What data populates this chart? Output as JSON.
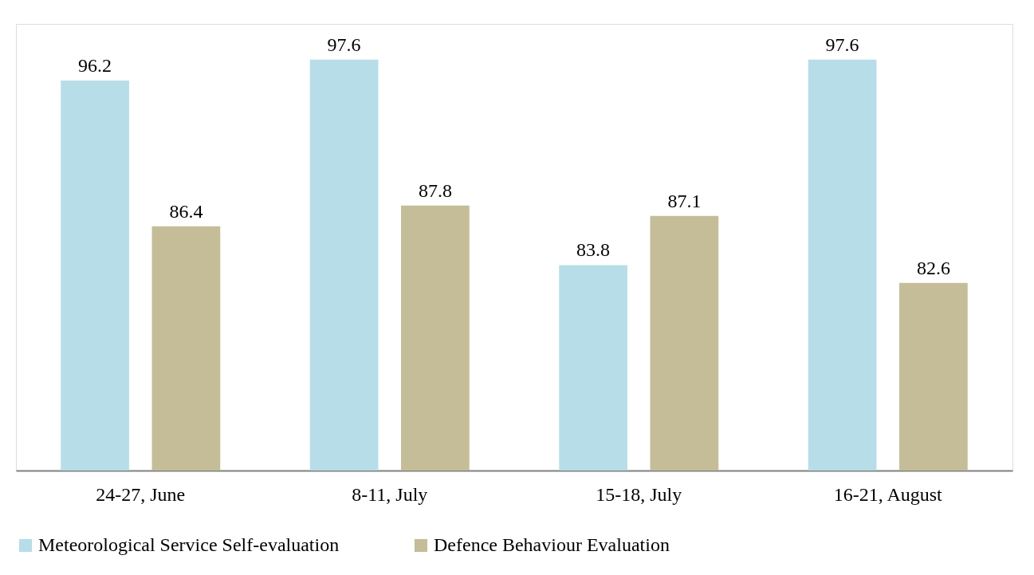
{
  "chart_data": {
    "type": "bar",
    "categories": [
      "24-27, June",
      "8-11, July",
      "15-18, July",
      "16-21, August"
    ],
    "series": [
      {
        "name": "Meteorological Service Self-evaluation",
        "color": "#b7dde8",
        "values": [
          96.2,
          97.6,
          83.8,
          97.6
        ]
      },
      {
        "name": "Defence Behaviour Evaluation",
        "color": "#c4bd97",
        "values": [
          86.4,
          87.8,
          87.1,
          82.6
        ]
      }
    ],
    "ylim": [
      70,
      100
    ],
    "data_labels": true,
    "legend": "bottom",
    "grid": false,
    "tick_labels": "x"
  }
}
